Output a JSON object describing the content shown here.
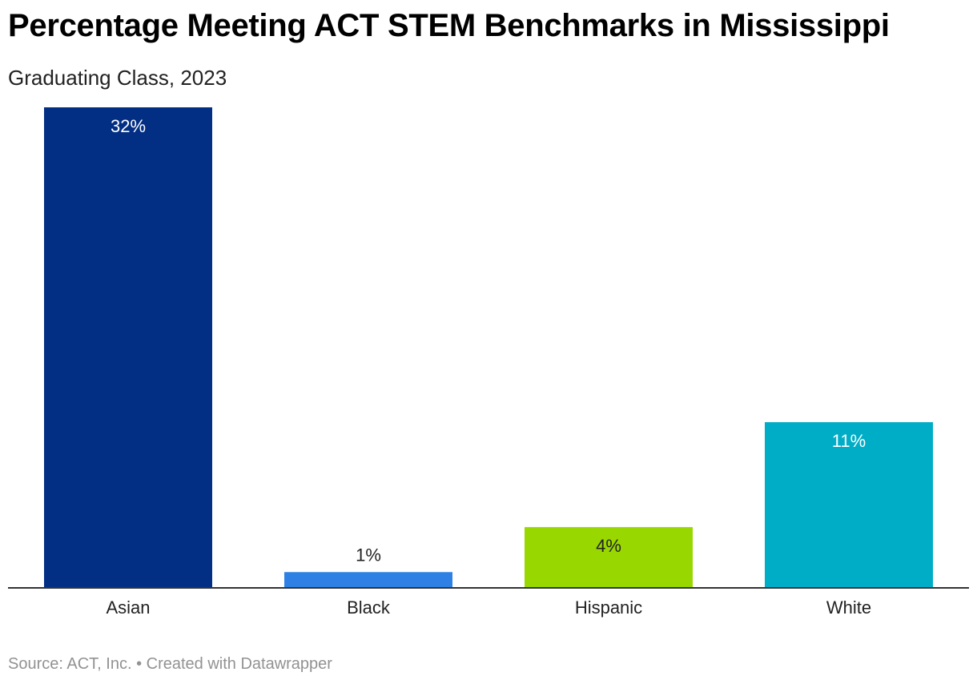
{
  "chart_data": {
    "type": "bar",
    "title": "Percentage Meeting ACT STEM Benchmarks in Mississippi",
    "subtitle": "Graduating Class, 2023",
    "categories": [
      "Asian",
      "Black",
      "Hispanic",
      "White"
    ],
    "values": [
      32,
      1,
      4,
      11
    ],
    "value_labels": [
      "32%",
      "1%",
      "4%",
      "11%"
    ],
    "colors": [
      "#022f84",
      "#2f80e5",
      "#98d700",
      "#00adc6"
    ],
    "label_colors": [
      "#ffffff",
      "#222222",
      "#222222",
      "#ffffff"
    ],
    "ylim": [
      0,
      32
    ],
    "grid": false,
    "xlabel": "",
    "ylabel": ""
  },
  "footer": {
    "text": "Source: ACT, Inc. • Created with Datawrapper"
  }
}
